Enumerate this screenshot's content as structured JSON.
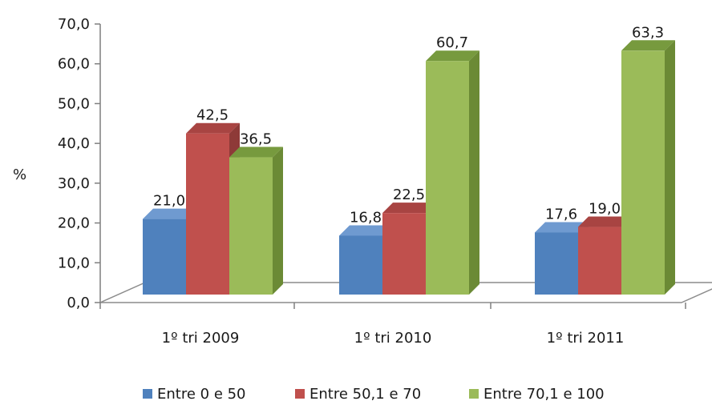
{
  "chart_data": {
    "type": "bar",
    "title": "",
    "xlabel": "",
    "ylabel": "%",
    "ylim": [
      0,
      70
    ],
    "yticks": [
      "0,0",
      "10,0",
      "20,0",
      "30,0",
      "40,0",
      "50,0",
      "60,0",
      "70,0"
    ],
    "categories": [
      "1º tri 2009",
      "1º tri 2010",
      "1º tri 2011"
    ],
    "series": [
      {
        "name": "Entre 0 e 50",
        "values": [
          21.0,
          16.8,
          17.6
        ],
        "labels": [
          "21,0",
          "16,8",
          "17,6"
        ]
      },
      {
        "name": "Entre 50,1 e 70",
        "values": [
          42.5,
          22.5,
          19.0
        ],
        "labels": [
          "42,5",
          "22,5",
          "19,0"
        ]
      },
      {
        "name": "Entre 70,1 e 100",
        "values": [
          36.5,
          60.7,
          63.3
        ],
        "labels": [
          "36,5",
          "60,7",
          "63,3"
        ]
      }
    ],
    "legend_position": "bottom",
    "grid": false,
    "style": "3d-clustered-column"
  },
  "colors": {
    "series": [
      {
        "front": "#4F81BD",
        "side": "#385D8A",
        "top": "#6F9AD0"
      },
      {
        "front": "#C0504D",
        "side": "#8E3A38",
        "top": "#A84442"
      },
      {
        "front": "#9BBB59",
        "side": "#6B8A35",
        "top": "#779A3E"
      }
    ],
    "axis": "#7f7f7f"
  }
}
